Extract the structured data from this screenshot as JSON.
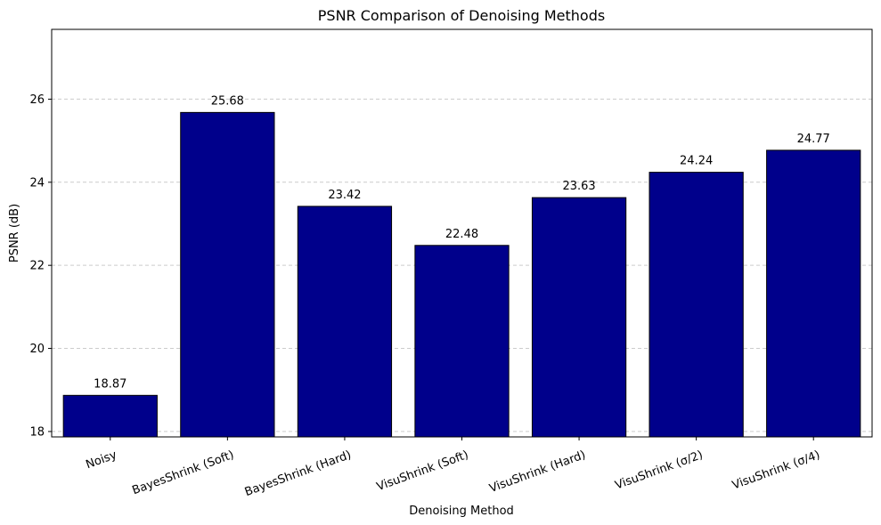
{
  "chart_data": {
    "type": "bar",
    "title": "PSNR Comparison of Denoising Methods",
    "xlabel": "Denoising Method",
    "ylabel": "PSNR (dB)",
    "categories": [
      "Noisy",
      "BayesShrink (Soft)",
      "BayesShrink (Hard)",
      "VisuShrink (Soft)",
      "VisuShrink (Hard)",
      "VisuShrink (σ/2)",
      "VisuShrink (σ/4)"
    ],
    "values": [
      18.87,
      25.68,
      23.42,
      22.48,
      23.63,
      24.24,
      24.77
    ],
    "value_labels": [
      "18.87",
      "25.68",
      "23.42",
      "22.48",
      "23.63",
      "24.24",
      "24.77"
    ],
    "ylim": [
      17.87,
      27.68
    ],
    "yticks": [
      18,
      20,
      22,
      24,
      26
    ],
    "ytick_labels": [
      "18",
      "20",
      "22",
      "24",
      "26"
    ],
    "grid": "y-dashed",
    "colors": {
      "bar": "#00008B",
      "edge": "#000000",
      "grid": "#cccccc"
    }
  }
}
